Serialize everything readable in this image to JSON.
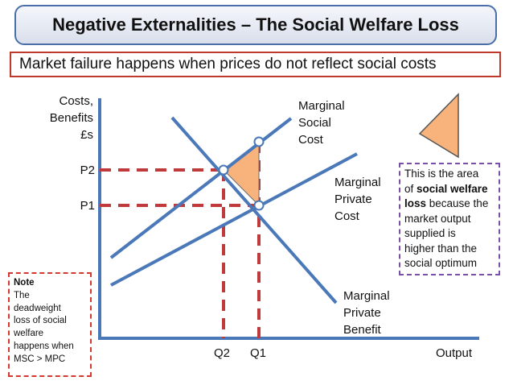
{
  "title": "Negative Externalities  – The Social Welfare Loss",
  "subtitle": "Market failure happens when prices do not reflect social costs",
  "y_axis_label": [
    "Costs,",
    "Benefits",
    "£s"
  ],
  "x_axis_label": "Output",
  "ticks": {
    "p2": "P2",
    "p1": "P1",
    "q2": "Q2",
    "q1": "Q1"
  },
  "curves": {
    "msc": [
      "Marginal",
      "Social",
      "Cost"
    ],
    "mpc": [
      "Marginal",
      "Private",
      "Cost"
    ],
    "mpb": [
      "Marginal",
      "Private",
      "Benefit"
    ]
  },
  "info_box": {
    "t1": "This is the area",
    "t2": "of ",
    "t3": "social welfare",
    "t4": "loss",
    "t5": " because the",
    "t6": "market output",
    "t7": "supplied is",
    "t8": "higher than the",
    "t9": "social optimum"
  },
  "note": {
    "title": "Note",
    "lines": [
      "The",
      "deadweight",
      "loss of social",
      "welfare",
      "happens when",
      "MSC > MPC"
    ]
  },
  "colors": {
    "curve": "#4a78b8",
    "dashed": "#c0393b",
    "loss_fill": "#f8b37c",
    "loss_stroke": "#6b6b6b",
    "title_border": "#4a6fa8",
    "subtitle_border": "#c0392b",
    "info_border": "#7b4fa6",
    "note_border": "#d43a2f"
  }
}
